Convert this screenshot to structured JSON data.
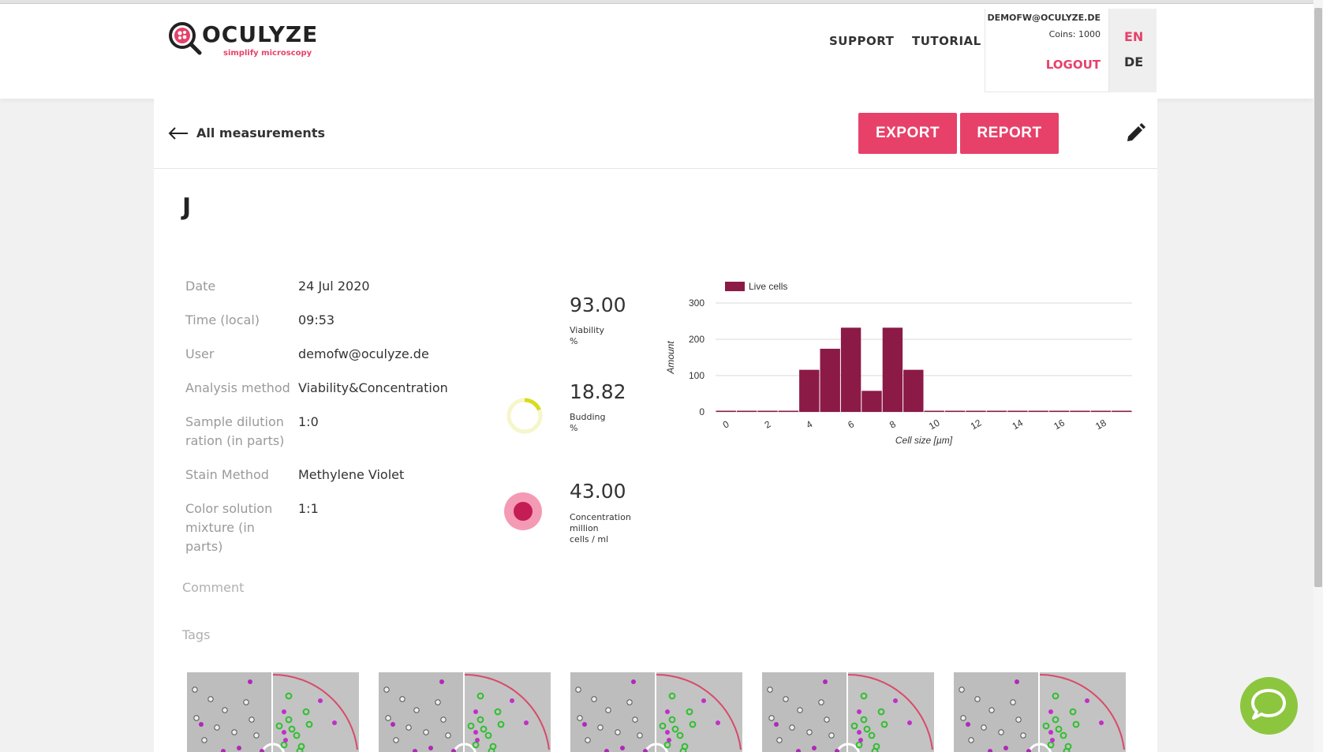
{
  "header": {
    "brand": "OCULYZE",
    "tagline": "simplify microscopy",
    "nav": {
      "support": "SUPPORT",
      "tutorial": "TUTORIAL"
    },
    "account": {
      "email": "DEMOFW@OCULYZE.DE",
      "coins": "Coins: 1000",
      "logout": "LOGOUT"
    },
    "lang": {
      "en": "EN",
      "de": "DE"
    },
    "colors": {
      "accent": "#e7416a",
      "chat": "#8cc63f"
    }
  },
  "toolbar": {
    "back_label": "All measurements",
    "export_label": "EXPORT",
    "report_label": "REPORT"
  },
  "measurement": {
    "title": "J",
    "details": [
      {
        "label": "Date",
        "value": "24 Jul 2020"
      },
      {
        "label": "Time (local)",
        "value": "09:53"
      },
      {
        "label": "User",
        "value": "demofw@oculyze.de"
      },
      {
        "label": "Analysis method",
        "value": "Viability&Concentration"
      },
      {
        "label": "Sample dilution ration (in parts)",
        "value": "1:0"
      },
      {
        "label": "Stain Method",
        "value": "Methylene Violet"
      },
      {
        "label": "Color solution mixture (in parts)",
        "value": "1:1"
      }
    ],
    "stats": [
      {
        "value": "93.00",
        "label": "Viability",
        "unit": "%"
      },
      {
        "value": "18.82",
        "label": "Budding",
        "unit": "%",
        "ring_fraction": 0.1882
      },
      {
        "value": "43.00",
        "label": "Concentration million",
        "unit": "cells / ml"
      }
    ],
    "comment_label": "Comment",
    "tags_label": "Tags"
  },
  "chart_data": {
    "type": "bar",
    "legend": "Live cells",
    "legend_position": "top-left",
    "xlabel": "Cell size [µm]",
    "ylabel": "Amount",
    "ylim": [
      0,
      300
    ],
    "yticks": [
      0,
      100,
      200,
      300
    ],
    "xticks": [
      0,
      2,
      4,
      6,
      8,
      10,
      12,
      14,
      16,
      18
    ],
    "x": [
      0,
      1,
      2,
      3,
      4,
      5,
      6,
      7,
      8,
      9,
      10,
      11,
      12,
      13,
      14,
      15,
      16,
      17,
      18,
      19
    ],
    "values": [
      0,
      0,
      0,
      0,
      116,
      174,
      232,
      58,
      232,
      116,
      0,
      0,
      0,
      0,
      0,
      0,
      0,
      0,
      0,
      0
    ],
    "color": "#8b1a47",
    "grid": true
  }
}
